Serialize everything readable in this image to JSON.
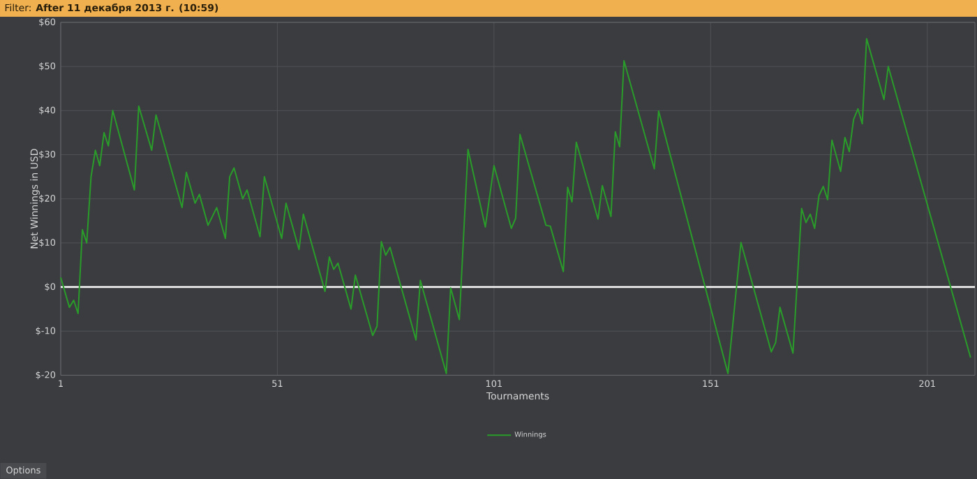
{
  "chart_data": {
    "type": "line",
    "title": "Filter: **After 11 декабря 2013 г. (10:59)**",
    "xlabel": "Tournaments",
    "ylabel": "Net Winnings in USD",
    "annotations": [
      "Options"
    ],
    "xlim": [
      1,
      212
    ],
    "xticks": [
      1,
      51,
      101,
      151,
      201
    ],
    "ylim": [
      -20,
      60
    ],
    "yticks": [
      {
        "value": -20,
        "label": "$-20"
      },
      {
        "value": -10,
        "label": "$-10"
      },
      {
        "value": 0,
        "label": "$0"
      },
      {
        "value": 10,
        "label": "$10"
      },
      {
        "value": 20,
        "label": "$20"
      },
      {
        "value": 30,
        "label": "$30"
      },
      {
        "value": 40,
        "label": "$40"
      },
      {
        "value": 50,
        "label": "$50"
      },
      {
        "value": 60,
        "label": "$60"
      }
    ],
    "grid": true,
    "legend": "bottom",
    "marker": "none",
    "line_style": "solid",
    "ref_lines": [
      {
        "axis": "y",
        "value": 0,
        "color": "#ffffff"
      }
    ],
    "series": [
      {
        "name": "Winnings",
        "color": "#2a9c2a",
        "x": [
          1,
          3,
          4,
          5,
          6,
          7,
          8,
          9,
          10,
          11,
          12,
          13,
          18,
          19,
          22,
          23,
          29,
          30,
          32,
          33,
          35,
          37,
          39,
          40,
          41,
          43,
          44,
          47,
          48,
          52,
          53,
          56,
          57,
          62,
          63,
          64,
          65,
          68,
          69,
          73,
          74,
          75,
          76,
          77,
          83,
          84,
          90,
          91,
          93,
          95,
          99,
          101,
          105,
          106,
          107,
          113,
          114,
          117,
          118,
          119,
          120,
          125,
          126,
          128,
          129,
          130,
          131,
          138,
          139,
          155,
          158,
          165,
          166,
          167,
          170,
          172,
          173,
          174,
          175,
          176,
          177,
          178,
          179,
          181,
          182,
          183,
          184,
          185,
          186,
          187,
          191,
          192,
          211
        ],
        "values": [
          2.2,
          -4.6,
          -3,
          -6,
          13,
          10,
          25,
          31,
          27.5,
          35,
          32,
          40,
          22,
          41,
          31,
          39,
          18,
          26,
          19,
          21,
          14,
          18,
          11,
          25,
          27,
          20,
          22,
          11.4,
          25,
          11,
          19,
          8.5,
          16.5,
          -1,
          6.8,
          4,
          5.4,
          -5,
          2.7,
          -11,
          -8.9,
          10.3,
          7.2,
          9,
          -12,
          1.5,
          -19.6,
          -0.2,
          -7.4,
          31.2,
          13.6,
          27.5,
          13.3,
          15.6,
          34.6,
          14,
          13.8,
          3.5,
          22.6,
          19.3,
          32.8,
          15.4,
          23,
          16,
          35.2,
          31.8,
          51.3,
          26.8,
          39.9,
          -19.6,
          10.1,
          -14.7,
          -12.6,
          -4.6,
          -15,
          17.8,
          14.6,
          16.5,
          13.3,
          20.7,
          22.8,
          19.8,
          33.3,
          26.2,
          33.9,
          30.7,
          38,
          40.4,
          37,
          56.3,
          42.5,
          50,
          -16
        ]
      }
    ]
  }
}
